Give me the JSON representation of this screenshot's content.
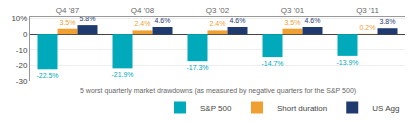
{
  "chart_data": {
    "type": "bar",
    "categories": [
      "Q4 '87",
      "Q4 '08",
      "Q3 '02",
      "Q3 '01",
      "Q3 '11"
    ],
    "series": [
      {
        "name": "S&P 500",
        "color": "#00aabb",
        "values": [
          -22.5,
          -21.9,
          -17.3,
          -14.7,
          -13.9
        ],
        "value_labels": [
          "-22.5%",
          "-21.9%",
          "-17.3%",
          "-14.7%",
          "-13.9%"
        ]
      },
      {
        "name": "Short duration",
        "color": "#f0a030",
        "values": [
          3.5,
          2.4,
          2.4,
          3.5,
          0.2
        ],
        "value_labels": [
          "3.5%",
          "2.4%",
          "2.4%",
          "3.5%",
          "0.2%"
        ]
      },
      {
        "name": "US Agg",
        "color": "#1e3a6e",
        "values": [
          5.8,
          4.6,
          4.6,
          4.6,
          3.8
        ],
        "value_labels": [
          "5.8%",
          "4.6%",
          "4.6%",
          "4.6%",
          "3.8%"
        ]
      }
    ],
    "ylim": [
      -30,
      11
    ],
    "yticks": [
      -30,
      -20,
      -10,
      0,
      {
        "value": 10,
        "label": "10%"
      }
    ],
    "grid": true,
    "legend": "lower right",
    "data_labels": true,
    "annotations": [
      "5 worst quarterly market drawdowns (as measured by negative quarters for the S&P 500)"
    ]
  }
}
